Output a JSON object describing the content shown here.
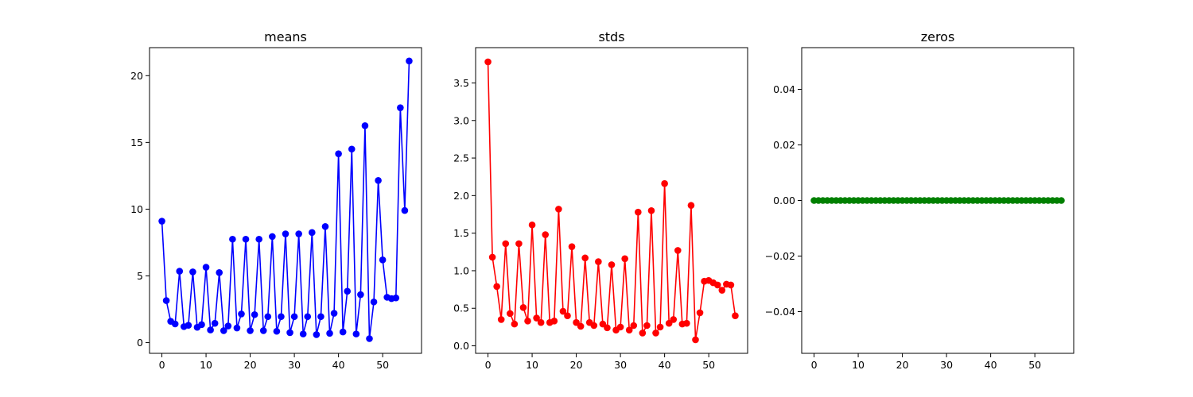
{
  "chart_data": [
    {
      "type": "line",
      "title": "means",
      "xlabel": "",
      "ylabel": "",
      "xlim": [
        -2.8,
        58.8
      ],
      "ylim": [
        -0.8,
        22.1
      ],
      "x_ticks": [
        0,
        10,
        20,
        30,
        40,
        50
      ],
      "y_ticks": [
        0,
        5,
        10,
        15,
        20
      ],
      "y_tick_labels": [
        "0",
        "5",
        "10",
        "15",
        "20"
      ],
      "grid": false,
      "color": "#0000ff",
      "marker": "circle",
      "series": [
        {
          "values": [
            9.1,
            3.15,
            1.6,
            1.4,
            5.35,
            1.2,
            1.3,
            5.3,
            1.15,
            1.35,
            5.65,
            0.95,
            1.45,
            5.25,
            0.9,
            1.25,
            7.75,
            1.1,
            2.15,
            7.75,
            0.9,
            2.1,
            7.75,
            0.9,
            1.95,
            7.95,
            0.85,
            1.95,
            8.15,
            0.75,
            1.95,
            8.15,
            0.65,
            1.95,
            8.25,
            0.6,
            1.95,
            8.7,
            0.7,
            2.2,
            14.15,
            0.8,
            3.85,
            14.5,
            0.65,
            3.6,
            16.25,
            0.3,
            3.05,
            12.15,
            6.2,
            3.4,
            3.3,
            3.35,
            17.6,
            9.9,
            21.1
          ]
        }
      ]
    },
    {
      "type": "line",
      "title": "stds",
      "xlabel": "",
      "ylabel": "",
      "xlim": [
        -2.8,
        58.8
      ],
      "ylim": [
        -0.1,
        3.97
      ],
      "x_ticks": [
        0,
        10,
        20,
        30,
        40,
        50
      ],
      "y_ticks": [
        0,
        0.5,
        1.0,
        1.5,
        2.0,
        2.5,
        3.0,
        3.5
      ],
      "y_tick_labels": [
        "0.0",
        "0.5",
        "1.0",
        "1.5",
        "2.0",
        "2.5",
        "3.0",
        "3.5"
      ],
      "grid": false,
      "color": "#ff0000",
      "marker": "circle",
      "series": [
        {
          "values": [
            3.78,
            1.18,
            0.79,
            0.35,
            1.36,
            0.43,
            0.29,
            1.36,
            0.51,
            0.33,
            1.61,
            0.37,
            0.31,
            1.48,
            0.31,
            0.33,
            1.82,
            0.46,
            0.4,
            1.32,
            0.31,
            0.26,
            1.17,
            0.31,
            0.27,
            1.12,
            0.29,
            0.24,
            1.08,
            0.21,
            0.25,
            1.16,
            0.21,
            0.27,
            1.78,
            0.17,
            0.27,
            1.8,
            0.17,
            0.25,
            2.16,
            0.3,
            0.35,
            1.27,
            0.29,
            0.3,
            1.87,
            0.08,
            0.44,
            0.86,
            0.87,
            0.84,
            0.81,
            0.74,
            0.82,
            0.81,
            0.4
          ]
        }
      ]
    },
    {
      "type": "line",
      "title": "zeros",
      "xlabel": "",
      "ylabel": "",
      "xlim": [
        -2.8,
        58.8
      ],
      "ylim": [
        -0.055,
        0.055
      ],
      "x_ticks": [
        0,
        10,
        20,
        30,
        40,
        50
      ],
      "y_ticks": [
        -0.04,
        -0.02,
        0.0,
        0.02,
        0.04
      ],
      "y_tick_labels": [
        "−0.04",
        "−0.02",
        "0.00",
        "0.02",
        "0.04"
      ],
      "grid": false,
      "color": "#008000",
      "marker": "circle",
      "series": [
        {
          "values": [
            0,
            0,
            0,
            0,
            0,
            0,
            0,
            0,
            0,
            0,
            0,
            0,
            0,
            0,
            0,
            0,
            0,
            0,
            0,
            0,
            0,
            0,
            0,
            0,
            0,
            0,
            0,
            0,
            0,
            0,
            0,
            0,
            0,
            0,
            0,
            0,
            0,
            0,
            0,
            0,
            0,
            0,
            0,
            0,
            0,
            0,
            0,
            0,
            0,
            0,
            0,
            0,
            0,
            0,
            0,
            0,
            0
          ]
        }
      ]
    }
  ]
}
